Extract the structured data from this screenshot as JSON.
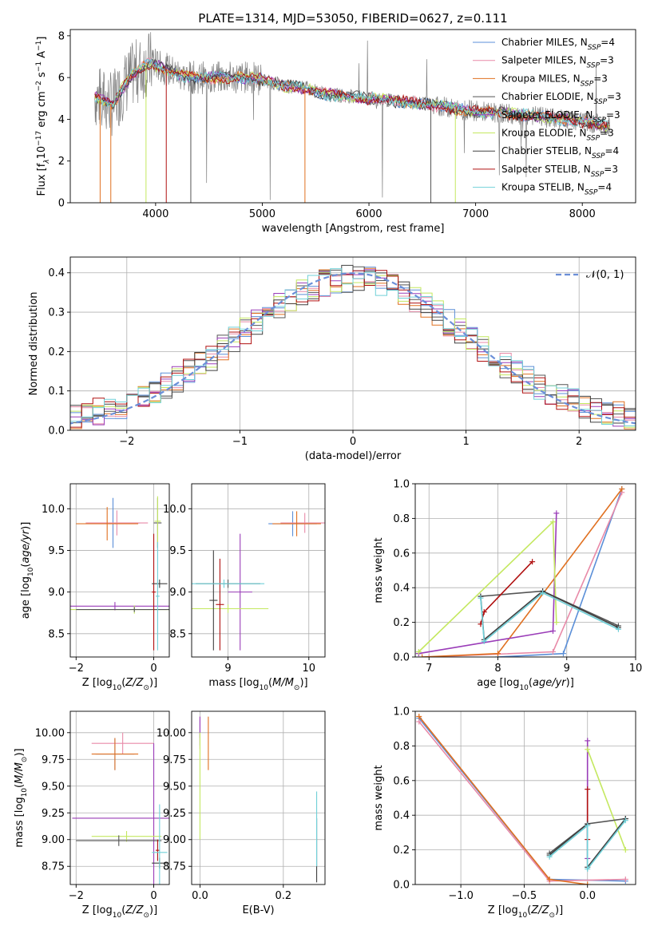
{
  "colors": {
    "chabrier_miles": "#5b8fd8",
    "salpeter_miles": "#e88aa8",
    "kroupa_miles": "#e07020",
    "chabrier_elodie": "#555555",
    "salpeter_elodie": "#9a3cb8",
    "kroupa_elodie": "#c4e860",
    "chabrier_stelib": "#404040",
    "salpeter_stelib": "#b01010",
    "kroupa_stelib": "#70d0d8",
    "data_spectrum": "#808080",
    "normal_curve": "#6b8fd8"
  },
  "chart_data": [
    {
      "id": "spectrum",
      "type": "line",
      "title": "PLATE=1314, MJD=53050, FIBERID=0627, z=0.111",
      "xlabel": "wavelength [Angstrom, rest frame]",
      "ylabel_parts": [
        "Flux [f",
        "λ",
        "10",
        "−17",
        " erg cm",
        "−2",
        " s",
        "−1",
        " A",
        "−1",
        "]"
      ],
      "xlim": [
        3200,
        8500
      ],
      "ylim": [
        0,
        8.3
      ],
      "xticks": [
        4000,
        5000,
        6000,
        7000,
        8000
      ],
      "yticks": [
        0,
        2,
        4,
        6,
        8
      ],
      "data_range": [
        3430,
        8260
      ],
      "continuum_anchors": [
        [
          3430,
          5.1
        ],
        [
          3600,
          4.7
        ],
        [
          3700,
          5.6
        ],
        [
          3800,
          6.2
        ],
        [
          3950,
          6.7
        ],
        [
          4100,
          6.4
        ],
        [
          4300,
          6.0
        ],
        [
          4500,
          6.0
        ],
        [
          4700,
          6.0
        ],
        [
          4900,
          6.0
        ],
        [
          5000,
          5.9
        ],
        [
          5200,
          5.6
        ],
        [
          5400,
          5.5
        ],
        [
          5600,
          5.2
        ],
        [
          5800,
          5.1
        ],
        [
          6000,
          5.0
        ],
        [
          6200,
          4.9
        ],
        [
          6400,
          4.8
        ],
        [
          6600,
          4.7
        ],
        [
          6800,
          4.5
        ],
        [
          7000,
          4.4
        ],
        [
          7200,
          4.3
        ],
        [
          7500,
          4.2
        ],
        [
          7800,
          4.0
        ],
        [
          8000,
          3.9
        ],
        [
          8260,
          3.7
        ]
      ],
      "legend_position": "upper right",
      "legend": [
        {
          "imf": "Chabrier",
          "lib": "MILES",
          "n": "4",
          "key": "chabrier_miles"
        },
        {
          "imf": "Salpeter",
          "lib": "MILES",
          "n": "3",
          "key": "salpeter_miles"
        },
        {
          "imf": "Kroupa",
          "lib": "MILES",
          "n": "3",
          "key": "kroupa_miles"
        },
        {
          "imf": "Chabrier",
          "lib": "ELODIE",
          "n": "3",
          "key": "chabrier_elodie"
        },
        {
          "imf": "Salpeter",
          "lib": "ELODIE",
          "n": "3",
          "key": "salpeter_elodie"
        },
        {
          "imf": "Kroupa",
          "lib": "ELODIE",
          "n": "3",
          "key": "kroupa_elodie"
        },
        {
          "imf": "Chabrier",
          "lib": "STELIB",
          "n": "4",
          "key": "chabrier_stelib"
        },
        {
          "imf": "Salpeter",
          "lib": "STELIB",
          "n": "3",
          "key": "salpeter_stelib"
        },
        {
          "imf": "Kroupa",
          "lib": "STELIB",
          "n": "4",
          "key": "kroupa_stelib"
        }
      ],
      "legend_sub": "SSP",
      "grid": false
    },
    {
      "id": "residuals",
      "type": "step",
      "xlabel": "(data-model)/error",
      "ylabel": "Normed distribution",
      "xlim": [
        -2.5,
        2.5
      ],
      "ylim": [
        0,
        0.44
      ],
      "xticks": [
        -2,
        -1,
        0,
        1,
        2
      ],
      "yticks": [
        0.0,
        0.1,
        0.2,
        0.3,
        0.4
      ],
      "bin_width": 0.1,
      "legend_label": "𝒩(0, 1)",
      "legend_position": "upper right",
      "grid": true
    },
    {
      "id": "age_vs_Z",
      "type": "errorbar",
      "xlabel": "Z [log10(Z/Z⊙)]",
      "ylabel": "age  [log10(age/yr)]",
      "xlim": [
        -2.15,
        0.4
      ],
      "ylim": [
        8.22,
        10.3
      ],
      "xticks": [
        -2,
        0
      ],
      "yticks": [
        8.5,
        9.0,
        9.5,
        10.0
      ],
      "grid": true,
      "points": [
        {
          "key": "chabrier_miles",
          "x": -1.05,
          "y": 9.83,
          "xerr": 0.7,
          "yerr": 0.3
        },
        {
          "key": "salpeter_miles",
          "x": -0.95,
          "y": 9.83,
          "xerr": 0.8,
          "yerr": 0.15
        },
        {
          "key": "kroupa_miles",
          "x": -1.2,
          "y": 9.82,
          "xerr": 0.8,
          "yerr": 0.2
        },
        {
          "key": "chabrier_elodie",
          "x": 0.1,
          "y": 9.83,
          "xerr": 0.1,
          "yerr": 0.3
        },
        {
          "key": "kroupa_elodie",
          "x": 0.1,
          "y": 9.85,
          "xerr": 0.08,
          "yerr": 0.3
        },
        {
          "key": "salpeter_elodie",
          "x": -1.0,
          "y": 8.83,
          "xerr": 2.0,
          "yerr": 0.05
        },
        {
          "key": "kroupa_elodie",
          "x": -0.5,
          "y": 8.79,
          "xerr": 1.8,
          "yerr": 0.05
        },
        {
          "key": "chabrier_elodie",
          "x": -0.5,
          "y": 8.79,
          "xerr": 1.5,
          "yerr": 0.03
        },
        {
          "key": "salpeter_stelib",
          "x": 0.0,
          "y": 9.0,
          "xerr": 0.05,
          "yerr": 0.7
        },
        {
          "key": "chabrier_stelib",
          "x": 0.15,
          "y": 9.1,
          "xerr": 0.2,
          "yerr": 0.05
        },
        {
          "key": "kroupa_stelib",
          "x": 0.1,
          "y": 8.95,
          "xerr": 0.05,
          "yerr": 0.65
        }
      ]
    },
    {
      "id": "age_vs_mass",
      "type": "errorbar",
      "xlabel": "mass [log10(M/M⊙)]",
      "xlim": [
        8.55,
        10.2
      ],
      "ylim": [
        8.22,
        10.3
      ],
      "xticks": [
        9,
        10
      ],
      "yticks": [
        8.5,
        9.0,
        9.5,
        10.0
      ],
      "grid": true,
      "points": [
        {
          "key": "chabrier_miles",
          "x": 9.8,
          "y": 9.82,
          "xerr": 0.3,
          "yerr": 0.15
        },
        {
          "key": "salpeter_miles",
          "x": 9.95,
          "y": 9.83,
          "xerr": 0.3,
          "yerr": 0.12
        },
        {
          "key": "kroupa_miles",
          "x": 9.85,
          "y": 9.82,
          "xerr": 0.3,
          "yerr": 0.15
        },
        {
          "key": "salpeter_elodie",
          "x": 9.15,
          "y": 9.0,
          "xerr": 0.15,
          "yerr": 0.7
        },
        {
          "key": "kroupa_elodie",
          "x": 9.0,
          "y": 8.8,
          "xerr": 0.5,
          "yerr": 0.05
        },
        {
          "key": "chabrier_elodie",
          "x": 9.0,
          "y": 9.1,
          "xerr": 0.4,
          "yerr": 0.05
        },
        {
          "key": "chabrier_stelib",
          "x": 8.82,
          "y": 8.9,
          "xerr": 0.05,
          "yerr": 0.6
        },
        {
          "key": "salpeter_stelib",
          "x": 8.9,
          "y": 8.85,
          "xerr": 0.05,
          "yerr": 0.55
        },
        {
          "key": "kroupa_stelib",
          "x": 8.95,
          "y": 9.1,
          "xerr": 0.5,
          "yerr": 0.05
        }
      ]
    },
    {
      "id": "mass_weight_vs_age",
      "type": "line",
      "xlabel": "age  [log10(age/yr)]",
      "ylabel": "mass weight",
      "xlim": [
        6.8,
        10.0
      ],
      "ylim": [
        0,
        1.0
      ],
      "xticks": [
        7,
        8,
        9,
        10
      ],
      "yticks": [
        0.0,
        0.2,
        0.4,
        0.6,
        0.8,
        1.0
      ],
      "grid": true,
      "series": [
        {
          "key": "chabrier_miles",
          "x": [
            8.0,
            8.95,
            9.8
          ],
          "y": [
            0.0,
            0.02,
            0.97
          ]
        },
        {
          "key": "salpeter_miles",
          "x": [
            7.0,
            8.8,
            9.8
          ],
          "y": [
            0.0,
            0.03,
            0.95
          ]
        },
        {
          "key": "kroupa_miles",
          "x": [
            6.9,
            8.0,
            9.8
          ],
          "y": [
            0.0,
            0.02,
            0.97
          ]
        },
        {
          "key": "salpeter_elodie",
          "x": [
            6.85,
            8.8,
            8.85
          ],
          "y": [
            0.02,
            0.15,
            0.83
          ]
        },
        {
          "key": "kroupa_elodie",
          "x": [
            6.85,
            8.8,
            8.85
          ],
          "y": [
            0.03,
            0.78,
            0.2
          ]
        },
        {
          "key": "chabrier_elodie",
          "x": [
            7.75,
            8.65,
            9.75
          ],
          "y": [
            0.35,
            0.38,
            0.18
          ]
        },
        {
          "key": "salpeter_stelib",
          "x": [
            7.75,
            7.8,
            8.5
          ],
          "y": [
            0.19,
            0.26,
            0.55
          ]
        },
        {
          "key": "chabrier_stelib",
          "x": [
            7.75,
            7.8,
            8.65,
            9.75
          ],
          "y": [
            0.35,
            0.1,
            0.38,
            0.17
          ]
        },
        {
          "key": "kroupa_stelib",
          "x": [
            7.75,
            7.8,
            8.65,
            9.75
          ],
          "y": [
            0.34,
            0.09,
            0.37,
            0.16
          ]
        }
      ]
    },
    {
      "id": "mass_vs_Z",
      "type": "errorbar",
      "xlabel": "Z [log10(Z/Z⊙)]",
      "ylabel": "mass [log10(M/M⊙)]",
      "xlim": [
        -2.15,
        0.4
      ],
      "ylim": [
        8.58,
        10.2
      ],
      "xticks": [
        -2,
        0
      ],
      "yticks": [
        8.75,
        9.0,
        9.25,
        9.5,
        9.75,
        10.0
      ],
      "grid": true,
      "points": [
        {
          "key": "chabrier_miles",
          "x": -1.0,
          "y": 9.8,
          "xerr": 0.5,
          "yerr": 0.15
        },
        {
          "key": "salpeter_miles",
          "x": -0.8,
          "y": 9.9,
          "xerr": 0.8,
          "yerr": 0.1
        },
        {
          "key": "kroupa_miles",
          "x": -1.0,
          "y": 9.8,
          "xerr": 0.6,
          "yerr": 0.15
        },
        {
          "key": "salpeter_elodie",
          "x": 0.0,
          "y": 9.2,
          "xerr": 2.1,
          "yerr": 0.7
        },
        {
          "key": "kroupa_elodie",
          "x": -0.7,
          "y": 9.03,
          "xerr": 0.9,
          "yerr": 0.05
        },
        {
          "key": "chabrier_elodie",
          "x": -0.9,
          "y": 8.99,
          "xerr": 1.1,
          "yerr": 0.05
        },
        {
          "key": "salpeter_stelib",
          "x": 0.1,
          "y": 8.9,
          "xerr": 0.05,
          "yerr": 0.1
        },
        {
          "key": "chabrier_stelib",
          "x": 0.15,
          "y": 8.78,
          "xerr": 0.2,
          "yerr": 0.05
        },
        {
          "key": "kroupa_stelib",
          "x": 0.15,
          "y": 8.88,
          "xerr": 0.2,
          "yerr": 0.45
        }
      ]
    },
    {
      "id": "mass_vs_ebv",
      "type": "errorbar",
      "xlabel": "E(B-V)",
      "xlim": [
        -0.02,
        0.3
      ],
      "ylim": [
        8.58,
        10.2
      ],
      "xticks": [
        0.0,
        0.2
      ],
      "yticks": [
        8.75,
        9.0,
        9.25,
        9.5,
        9.75,
        10.0
      ],
      "grid": true,
      "points": [
        {
          "key": "chabrier_miles",
          "x": 0.0,
          "y": 10.0,
          "xerr": 0.0,
          "yerr": 0.12
        },
        {
          "key": "salpeter_miles",
          "x": 0.0,
          "y": 10.0,
          "xerr": 0.0,
          "yerr": 0.15
        },
        {
          "key": "kroupa_miles",
          "x": 0.02,
          "y": 9.9,
          "xerr": 0.0,
          "yerr": 0.25
        },
        {
          "key": "salpeter_elodie",
          "x": 0.0,
          "y": 10.05,
          "xerr": 0.0,
          "yerr": 0.1
        },
        {
          "key": "kroupa_elodie",
          "x": 0.0,
          "y": 9.5,
          "xerr": 0.0,
          "yerr": 0.5
        },
        {
          "key": "chabrier_stelib",
          "x": 0.28,
          "y": 8.9,
          "xerr": 0.0,
          "yerr": 0.3
        },
        {
          "key": "kroupa_stelib",
          "x": 0.28,
          "y": 9.1,
          "xerr": 0.0,
          "yerr": 0.35
        }
      ]
    },
    {
      "id": "mass_weight_vs_Z",
      "type": "line",
      "xlabel": "Z [log10(Z/Z⊙)]",
      "ylabel": "mass weight",
      "xlim": [
        -1.36,
        0.38
      ],
      "ylim": [
        0,
        1.0
      ],
      "xticks": [
        -1.0,
        -0.5,
        0.0
      ],
      "yticks": [
        0.0,
        0.2,
        0.4,
        0.6,
        0.8,
        1.0
      ],
      "grid": true,
      "series": [
        {
          "key": "chabrier_miles",
          "x": [
            -1.33,
            -0.3,
            0.3
          ],
          "y": [
            0.96,
            0.03,
            0.02
          ]
        },
        {
          "key": "salpeter_miles",
          "x": [
            -1.33,
            -0.3,
            0.3
          ],
          "y": [
            0.94,
            0.02,
            0.03
          ]
        },
        {
          "key": "kroupa_miles",
          "x": [
            -1.33,
            -0.3,
            0.0
          ],
          "y": [
            0.97,
            0.03,
            0.0
          ]
        },
        {
          "key": "salpeter_elodie",
          "x": [
            0.0,
            0.0
          ],
          "y": [
            0.15,
            0.83
          ]
        },
        {
          "key": "kroupa_elodie",
          "x": [
            0.0,
            0.3
          ],
          "y": [
            0.78,
            0.2
          ]
        },
        {
          "key": "chabrier_elodie",
          "x": [
            -0.3,
            0.0,
            0.3
          ],
          "y": [
            0.18,
            0.35,
            0.38
          ]
        },
        {
          "key": "salpeter_stelib",
          "x": [
            0.0,
            0.0
          ],
          "y": [
            0.26,
            0.55
          ]
        },
        {
          "key": "chabrier_stelib",
          "x": [
            -0.3,
            0.0,
            0.0,
            0.3
          ],
          "y": [
            0.17,
            0.35,
            0.1,
            0.38
          ]
        },
        {
          "key": "kroupa_stelib",
          "x": [
            -0.3,
            0.0,
            0.0,
            0.3
          ],
          "y": [
            0.16,
            0.34,
            0.09,
            0.37
          ]
        }
      ]
    }
  ]
}
